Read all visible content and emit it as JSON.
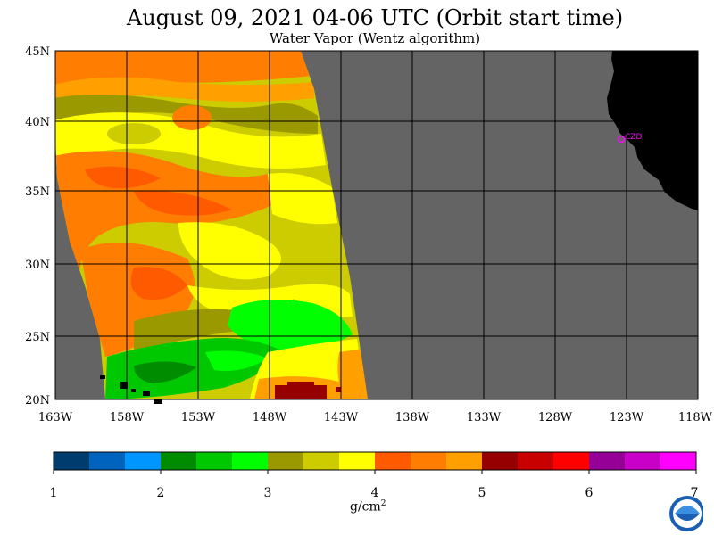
{
  "header": {
    "title": "August 09, 2021  04-06 UTC  (Orbit start time)",
    "subtitle": "Water Vapor (Wentz algorithm)"
  },
  "map": {
    "lat_labels": [
      "45N",
      "40N",
      "35N",
      "30N",
      "25N",
      "20N"
    ],
    "lon_labels": [
      "163W",
      "158W",
      "153W",
      "148W",
      "143W",
      "138W",
      "133W",
      "128W",
      "123W",
      "118W"
    ],
    "station_label": "CZD",
    "colors": {
      "no_data": "#646464",
      "land": "#000000",
      "station": "#ff00ff",
      "grid": "#000000"
    }
  },
  "colorbar": {
    "tick_labels": [
      "1",
      "2",
      "3",
      "4",
      "5",
      "6",
      "7"
    ],
    "units_base": "g/cm",
    "units_sup": "2",
    "colors": [
      "#003c6e",
      "#0064be",
      "#0096ff",
      "#008c00",
      "#00c800",
      "#00ff00",
      "#9a9a00",
      "#cccc00",
      "#ffff00",
      "#ff5a00",
      "#ff7d00",
      "#ffa000",
      "#960000",
      "#c80000",
      "#ff0000",
      "#960096",
      "#c800c8",
      "#ff00ff"
    ]
  },
  "logo": {
    "name": "noaa-logo"
  }
}
